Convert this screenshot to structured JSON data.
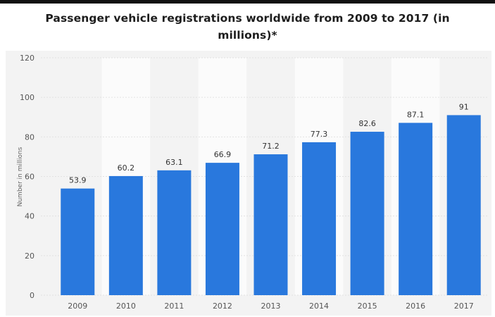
{
  "colors": {
    "bar": "#2978DD",
    "band": "#fbfbfb",
    "plot_bg": "#f3f3f3",
    "grid": "#e2e2e2"
  },
  "chart_data": {
    "type": "bar",
    "title": "Passenger vehicle registrations worldwide from 2009 to 2017 (in millions)*",
    "xlabel": "",
    "ylabel": "Number in millions",
    "categories": [
      "2009",
      "2010",
      "2011",
      "2012",
      "2013",
      "2014",
      "2015",
      "2016",
      "2017"
    ],
    "values": [
      53.9,
      60.2,
      63.1,
      66.9,
      71.2,
      77.3,
      82.6,
      87.1,
      91
    ],
    "value_labels": [
      "53.9",
      "60.2",
      "63.1",
      "66.9",
      "71.2",
      "77.3",
      "82.6",
      "87.1",
      "91"
    ],
    "ylim": [
      0,
      120
    ],
    "yticks": [
      0,
      20,
      40,
      60,
      80,
      100,
      120
    ],
    "grid": true,
    "legend": "none"
  }
}
